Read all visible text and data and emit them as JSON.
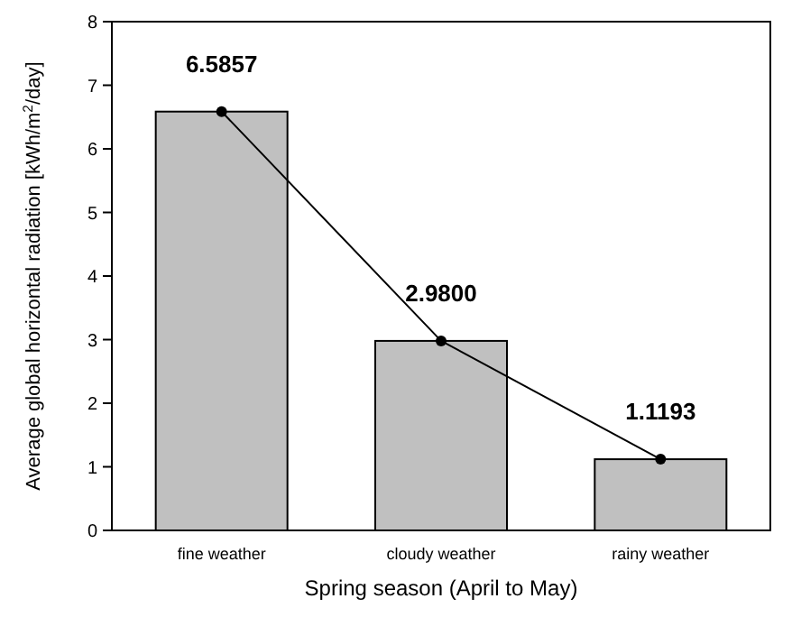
{
  "chart_data": {
    "type": "bar",
    "xlabel": "Spring season (April to May)",
    "ylabel": "Average global horizontal radiation [kWh/m$^{2}$/day]",
    "categories": [
      "fine weather",
      "cloudy weather",
      "rainy weather"
    ],
    "series": [
      {
        "color": "#c0c0c0",
        "values": [
          6.5857,
          2.98,
          1.1193
        ],
        "value_labels": [
          "6.5857",
          "2.9800",
          "1.1193"
        ]
      },
      {
        "type": "line",
        "color": "#000000",
        "values": [
          6.5857,
          2.98,
          1.1193
        ],
        "marker": "circle",
        "line_style": "solid"
      }
    ],
    "ylim": [
      0,
      8
    ],
    "yticks": [
      0,
      1,
      2,
      3,
      4,
      5,
      6,
      7,
      8
    ],
    "grid": false
  }
}
